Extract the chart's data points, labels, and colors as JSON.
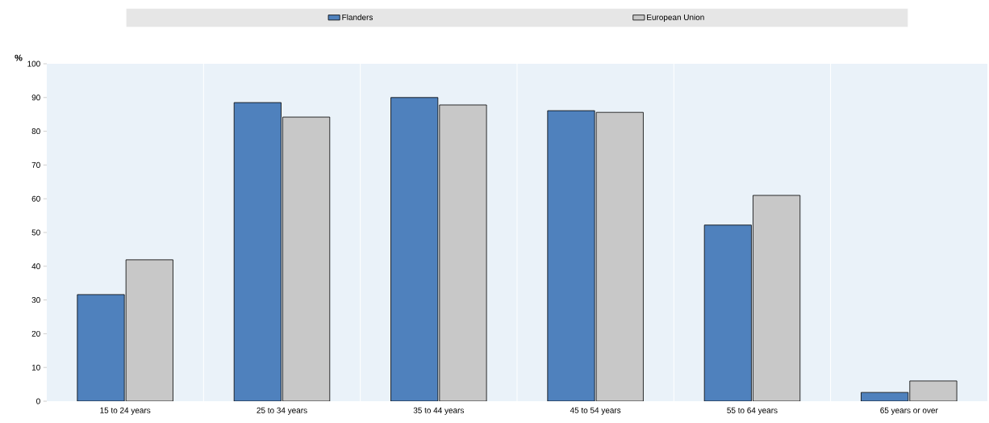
{
  "chart_data": {
    "type": "bar",
    "ylabel": "%",
    "categories": [
      "15 to 24 years",
      "25 to 34 years",
      "35 to 44 years",
      "45 to 54 years",
      "55 to 64 years",
      "65 years or over"
    ],
    "series": [
      {
        "name": "Flanders",
        "color": "#4f81bd",
        "values": [
          31.6,
          88.5,
          90.0,
          86.1,
          52.2,
          2.6
        ]
      },
      {
        "name": "European Union",
        "color": "#c8c8c8",
        "values": [
          41.9,
          84.2,
          87.8,
          85.6,
          61.0,
          6.0
        ]
      }
    ],
    "ylim": [
      0,
      100
    ],
    "yticks": [
      0,
      10,
      20,
      30,
      40,
      50,
      60,
      70,
      80,
      90,
      100
    ],
    "grid": "x",
    "legend": "top"
  }
}
